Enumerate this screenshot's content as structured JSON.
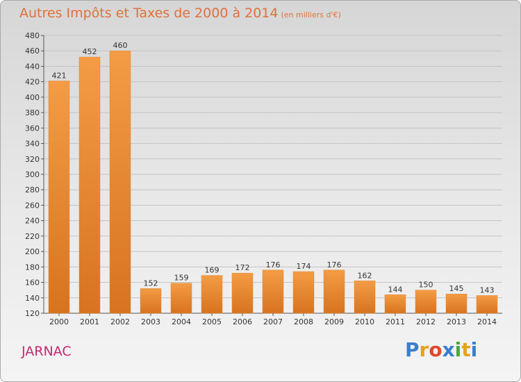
{
  "chart_data": {
    "type": "bar",
    "title": "Autres Impôts et Taxes de 2000 à 2014",
    "subtitle": "(en milliers d'€)",
    "categories": [
      "2000",
      "2001",
      "2002",
      "2003",
      "2004",
      "2005",
      "2006",
      "2007",
      "2008",
      "2009",
      "2010",
      "2011",
      "2012",
      "2013",
      "2014"
    ],
    "values": [
      421,
      452,
      460,
      152,
      159,
      169,
      172,
      176,
      174,
      176,
      162,
      144,
      150,
      145,
      143
    ],
    "ylim": [
      120,
      480
    ],
    "yticks": [
      120,
      140,
      160,
      180,
      200,
      220,
      240,
      260,
      280,
      300,
      320,
      340,
      360,
      380,
      400,
      420,
      440,
      460,
      480
    ],
    "grid": true,
    "bar_color": "#f39c45",
    "bar_color_dark": "#d8731f"
  },
  "town": "JARNAC",
  "logo": {
    "letters": [
      "P",
      "r",
      "o",
      "x",
      "i",
      "t",
      "i"
    ],
    "colors": [
      "#3a7ecf",
      "#e6a21c",
      "#e0492a",
      "#3a7ecf",
      "#4aa83a",
      "#e6a21c",
      "#3a7ecf"
    ]
  }
}
